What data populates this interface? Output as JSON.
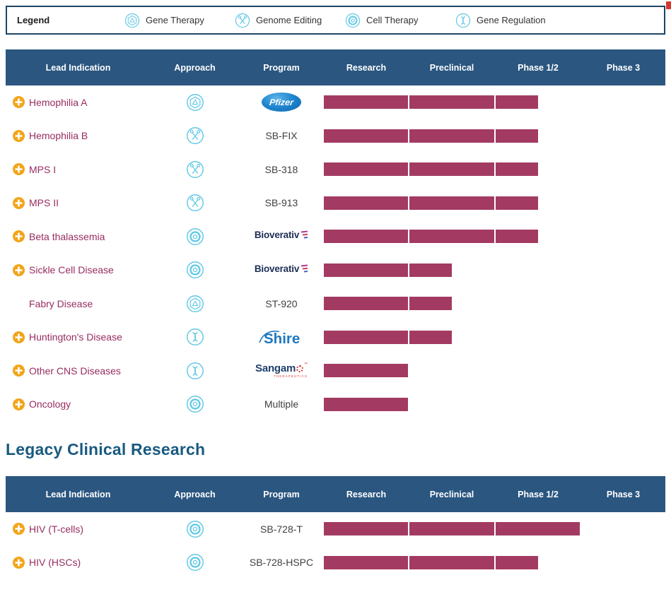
{
  "legend": {
    "title": "Legend",
    "items": [
      {
        "icon": "gene-therapy-icon",
        "type": "gene_therapy",
        "label": "Gene Therapy"
      },
      {
        "icon": "genome-editing-icon",
        "type": "genome_editing",
        "label": "Genome Editing"
      },
      {
        "icon": "cell-therapy-icon",
        "type": "cell_therapy",
        "label": "Cell Therapy"
      },
      {
        "icon": "gene-regulation-icon",
        "type": "gene_regulation",
        "label": "Gene Regulation"
      }
    ]
  },
  "columns": [
    "Lead Indication",
    "Approach",
    "Program",
    "Research",
    "Preclinical",
    "Phase 1/2",
    "Phase 3"
  ],
  "stage_columns": [
    "Research",
    "Preclinical",
    "Phase 1/2",
    "Phase 3"
  ],
  "section2_title": "Legacy Clinical Research",
  "colors": {
    "bar": "#a33a62",
    "header_bg": "#2a5680",
    "icon_cyan": "#5ec8e5",
    "indication_text": "#972c5f",
    "expand_orange": "#f2a51a",
    "legend_border": "#1d4566",
    "section_heading": "#195a80"
  },
  "tables": [
    {
      "name": "pipeline",
      "rows": [
        {
          "indication": "Hemophilia A",
          "expand": true,
          "approach": "gene_therapy",
          "program": {
            "type": "logo",
            "name": "pfizer",
            "text": "Pfizer"
          },
          "stages": [
            1,
            1,
            0.5,
            0
          ]
        },
        {
          "indication": "Hemophilia B",
          "expand": true,
          "approach": "genome_editing",
          "program": {
            "type": "text",
            "text": "SB-FIX"
          },
          "stages": [
            1,
            1,
            0.5,
            0
          ]
        },
        {
          "indication": "MPS I",
          "expand": true,
          "approach": "genome_editing",
          "program": {
            "type": "text",
            "text": "SB-318"
          },
          "stages": [
            1,
            1,
            0.5,
            0
          ]
        },
        {
          "indication": "MPS II",
          "expand": true,
          "approach": "genome_editing",
          "program": {
            "type": "text",
            "text": "SB-913"
          },
          "stages": [
            1,
            1,
            0.5,
            0
          ]
        },
        {
          "indication": "Beta thalassemia",
          "expand": true,
          "approach": "cell_therapy",
          "program": {
            "type": "logo",
            "name": "bioverativ",
            "text": "Bioverativ"
          },
          "stages": [
            1,
            1,
            0.5,
            0
          ]
        },
        {
          "indication": "Sickle Cell Disease",
          "expand": true,
          "approach": "cell_therapy",
          "program": {
            "type": "logo",
            "name": "bioverativ",
            "text": "Bioverativ"
          },
          "stages": [
            1,
            0.5,
            0,
            0
          ]
        },
        {
          "indication": "Fabry Disease",
          "expand": false,
          "approach": "gene_therapy",
          "program": {
            "type": "text",
            "text": "ST-920"
          },
          "stages": [
            1,
            0.5,
            0,
            0
          ]
        },
        {
          "indication": "Huntington's Disease",
          "expand": true,
          "approach": "gene_regulation",
          "program": {
            "type": "logo",
            "name": "shire",
            "text": "Shire"
          },
          "stages": [
            1,
            0.5,
            0,
            0
          ]
        },
        {
          "indication": "Other CNS Diseases",
          "expand": true,
          "approach": "gene_regulation",
          "program": {
            "type": "logo",
            "name": "sangamo",
            "text": "Sangamo",
            "sub": "THERAPEUTICS"
          },
          "stages": [
            1,
            0,
            0,
            0
          ]
        },
        {
          "indication": "Oncology",
          "expand": true,
          "approach": "cell_therapy",
          "program": {
            "type": "text",
            "text": "Multiple"
          },
          "stages": [
            1,
            0,
            0,
            0
          ]
        }
      ]
    },
    {
      "name": "legacy",
      "rows": [
        {
          "indication": "HIV (T-cells)",
          "expand": true,
          "approach": "cell_therapy",
          "program": {
            "type": "text",
            "text": "SB-728-T"
          },
          "stages": [
            1,
            1,
            1,
            0
          ]
        },
        {
          "indication": "HIV (HSCs)",
          "expand": true,
          "approach": "cell_therapy",
          "program": {
            "type": "text",
            "text": "SB-728-HSPC"
          },
          "stages": [
            1,
            1,
            0.5,
            0
          ]
        }
      ]
    }
  ]
}
